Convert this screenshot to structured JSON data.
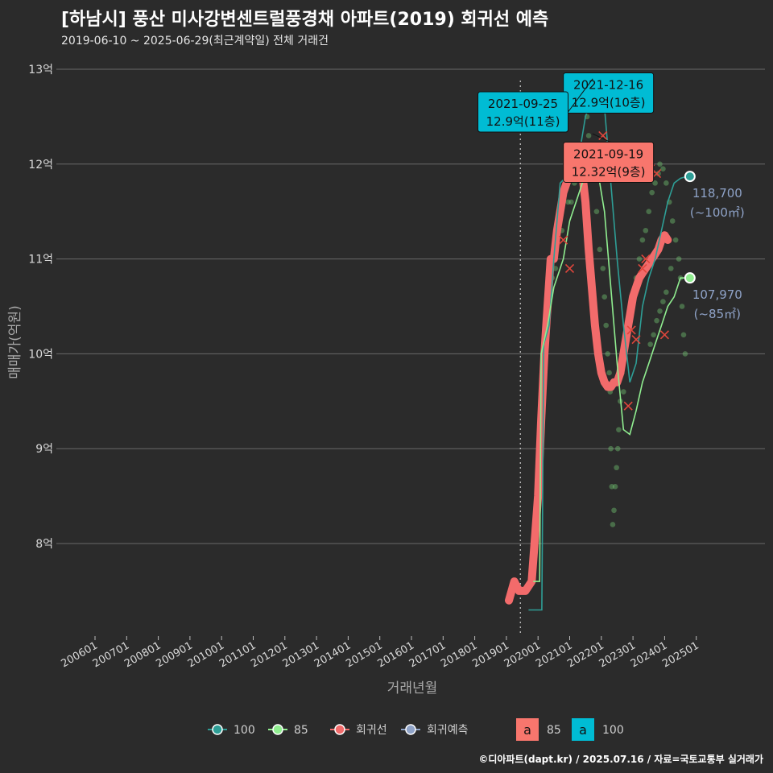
{
  "header": {
    "title": "[하남시] 풍산 미사강변센트럴풍경채 아파트(2019) 회귀선 예측",
    "subtitle": "2019-06-10 ~ 2025-06-29(최근계약일) 전체 거래건"
  },
  "footer": {
    "credit": "©디아파트(dapt.kr) / 2025.07.16 / 자료=국토교통부 실거래가"
  },
  "chart_data": {
    "type": "line",
    "xlabel": "거래년월",
    "ylabel": "매매가(억원)",
    "ylim": [
      7.0,
      13.1
    ],
    "y_ticks": [
      8,
      9,
      10,
      11,
      12,
      13
    ],
    "y_tick_labels": [
      "8억",
      "9억",
      "10억",
      "11억",
      "12억",
      "13억"
    ],
    "x_tick_labels": [
      "200601",
      "200701",
      "200801",
      "200901",
      "201001",
      "201101",
      "201201",
      "201301",
      "201401",
      "201501",
      "201601",
      "201701",
      "201801",
      "201901",
      "202001",
      "202101",
      "202201",
      "202301",
      "202401",
      "202501"
    ],
    "first_trade_marker": "2019-06-10",
    "grid": true,
    "colors": {
      "s100": "#2e9e96",
      "s85": "#90ee90",
      "regression": "#f26b6b",
      "forecast": "#8fa3c8",
      "label85_bg": "#f8766d",
      "label100_bg": "#00bcd4",
      "text_muted": "#8fa3c8"
    },
    "series": [
      {
        "name": "100",
        "points": [
          [
            2019.7,
            7.3
          ],
          [
            2020.12,
            7.3
          ],
          [
            2020.18,
            10.1
          ],
          [
            2020.35,
            10.3
          ],
          [
            2020.5,
            11.0
          ],
          [
            2020.7,
            11.8
          ],
          [
            2021.0,
            11.9
          ],
          [
            2021.3,
            12.1
          ],
          [
            2021.5,
            12.5
          ],
          [
            2021.7,
            12.7
          ],
          [
            2021.9,
            12.7
          ],
          [
            2022.1,
            12.6
          ],
          [
            2022.3,
            11.8
          ],
          [
            2022.5,
            11.0
          ],
          [
            2022.7,
            10.3
          ],
          [
            2022.9,
            9.7
          ],
          [
            2023.1,
            9.9
          ],
          [
            2023.3,
            10.5
          ],
          [
            2023.5,
            10.8
          ],
          [
            2023.7,
            11.0
          ],
          [
            2023.9,
            11.3
          ],
          [
            2024.1,
            11.6
          ],
          [
            2024.3,
            11.8
          ],
          [
            2024.5,
            11.85
          ],
          [
            2024.7,
            11.87
          ]
        ]
      },
      {
        "name": "85",
        "points": [
          [
            2019.85,
            7.6
          ],
          [
            2020.05,
            7.6
          ],
          [
            2020.1,
            10.0
          ],
          [
            2020.3,
            10.3
          ],
          [
            2020.5,
            10.7
          ],
          [
            2020.8,
            11.0
          ],
          [
            2021.0,
            11.4
          ],
          [
            2021.3,
            11.7
          ],
          [
            2021.5,
            11.9
          ],
          [
            2021.7,
            12.0
          ],
          [
            2021.9,
            11.9
          ],
          [
            2022.1,
            11.5
          ],
          [
            2022.3,
            10.7
          ],
          [
            2022.5,
            9.9
          ],
          [
            2022.7,
            9.2
          ],
          [
            2022.9,
            9.15
          ],
          [
            2023.1,
            9.4
          ],
          [
            2023.3,
            9.7
          ],
          [
            2023.5,
            9.9
          ],
          [
            2023.7,
            10.1
          ],
          [
            2023.9,
            10.3
          ],
          [
            2024.1,
            10.5
          ],
          [
            2024.3,
            10.6
          ],
          [
            2024.5,
            10.8
          ],
          [
            2024.7,
            10.8
          ]
        ]
      },
      {
        "name": "회귀선",
        "points": [
          [
            2019.08,
            7.4
          ],
          [
            2019.25,
            7.6
          ],
          [
            2019.4,
            7.5
          ],
          [
            2019.6,
            7.5
          ],
          [
            2019.8,
            7.6
          ],
          [
            2020.0,
            8.5
          ],
          [
            2020.1,
            9.3
          ],
          [
            2020.2,
            10.0
          ],
          [
            2020.3,
            10.5
          ],
          [
            2020.4,
            11.0
          ],
          [
            2020.5,
            11.0
          ],
          [
            2020.6,
            11.3
          ],
          [
            2020.7,
            11.5
          ],
          [
            2020.8,
            11.7
          ],
          [
            2020.9,
            11.8
          ],
          [
            2021.0,
            11.9
          ],
          [
            2021.1,
            12.0
          ],
          [
            2021.2,
            12.1
          ],
          [
            2021.3,
            12.05
          ],
          [
            2021.4,
            11.9
          ],
          [
            2021.5,
            11.6
          ],
          [
            2021.6,
            11.1
          ],
          [
            2021.7,
            10.7
          ],
          [
            2021.8,
            10.3
          ],
          [
            2021.9,
            10.0
          ],
          [
            2022.0,
            9.8
          ],
          [
            2022.1,
            9.7
          ],
          [
            2022.2,
            9.65
          ],
          [
            2022.3,
            9.65
          ],
          [
            2022.4,
            9.7
          ],
          [
            2022.5,
            9.7
          ],
          [
            2022.6,
            9.8
          ],
          [
            2022.7,
            10.0
          ],
          [
            2022.8,
            10.2
          ],
          [
            2022.9,
            10.4
          ],
          [
            2023.0,
            10.6
          ],
          [
            2023.1,
            10.7
          ],
          [
            2023.2,
            10.8
          ],
          [
            2023.3,
            10.85
          ],
          [
            2023.4,
            10.9
          ],
          [
            2023.5,
            10.95
          ],
          [
            2023.6,
            11.0
          ],
          [
            2023.7,
            11.05
          ],
          [
            2023.8,
            11.1
          ],
          [
            2023.9,
            11.2
          ],
          [
            2024.0,
            11.25
          ],
          [
            2024.1,
            11.2
          ]
        ]
      },
      {
        "name": "회귀예측",
        "points": []
      }
    ],
    "scatter": [
      [
        2020.25,
        10.35
      ],
      [
        2020.45,
        10.8
      ],
      [
        2020.55,
        10.9
      ],
      [
        2020.75,
        11.3
      ],
      [
        2020.95,
        11.6
      ],
      [
        2021.05,
        11.6
      ],
      [
        2021.15,
        11.8
      ],
      [
        2021.35,
        12.0
      ],
      [
        2021.45,
        12.2
      ],
      [
        2021.55,
        12.5
      ],
      [
        2021.6,
        12.3
      ],
      [
        2021.75,
        12.0
      ],
      [
        2021.85,
        11.5
      ],
      [
        2021.95,
        11.1
      ],
      [
        2022.05,
        10.9
      ],
      [
        2022.1,
        10.6
      ],
      [
        2022.15,
        10.3
      ],
      [
        2022.2,
        10.0
      ],
      [
        2022.25,
        9.8
      ],
      [
        2022.28,
        9.6
      ],
      [
        2022.3,
        9.0
      ],
      [
        2022.33,
        8.6
      ],
      [
        2022.36,
        8.2
      ],
      [
        2022.4,
        8.35
      ],
      [
        2022.44,
        8.6
      ],
      [
        2022.48,
        8.8
      ],
      [
        2022.52,
        9.0
      ],
      [
        2022.55,
        9.2
      ],
      [
        2022.6,
        9.5
      ],
      [
        2022.65,
        9.8
      ],
      [
        2022.7,
        9.6
      ],
      [
        2022.8,
        10.2
      ],
      [
        2022.9,
        10.4
      ],
      [
        2023.0,
        10.6
      ],
      [
        2023.1,
        10.8
      ],
      [
        2023.2,
        11.0
      ],
      [
        2023.3,
        11.2
      ],
      [
        2023.4,
        11.3
      ],
      [
        2023.5,
        11.5
      ],
      [
        2023.6,
        11.7
      ],
      [
        2023.7,
        11.8
      ],
      [
        2023.8,
        11.9
      ],
      [
        2023.85,
        12.0
      ],
      [
        2023.95,
        11.95
      ],
      [
        2024.05,
        11.8
      ],
      [
        2024.15,
        11.6
      ],
      [
        2024.25,
        11.4
      ],
      [
        2024.35,
        11.2
      ],
      [
        2024.45,
        11.0
      ],
      [
        2024.5,
        10.8
      ],
      [
        2024.55,
        10.5
      ],
      [
        2024.6,
        10.2
      ],
      [
        2024.65,
        10.0
      ],
      [
        2023.55,
        10.1
      ],
      [
        2023.65,
        10.2
      ],
      [
        2023.75,
        10.35
      ],
      [
        2023.85,
        10.45
      ],
      [
        2023.95,
        10.55
      ],
      [
        2024.05,
        10.65
      ],
      [
        2024.2,
        10.9
      ]
    ],
    "regression_marks": [
      [
        2021.0,
        10.9
      ],
      [
        2020.8,
        11.2
      ],
      [
        2021.95,
        12.9
      ],
      [
        2022.0,
        12.9
      ],
      [
        2022.05,
        12.3
      ],
      [
        2022.85,
        9.45
      ],
      [
        2022.95,
        10.25
      ],
      [
        2023.1,
        10.15
      ],
      [
        2023.3,
        10.9
      ],
      [
        2023.4,
        11.0
      ],
      [
        2023.5,
        11.9
      ],
      [
        2023.55,
        11.95
      ],
      [
        2023.75,
        11.9
      ],
      [
        2024.0,
        10.2
      ]
    ],
    "end_points": [
      {
        "series": "100",
        "x": 2024.8,
        "y": 11.87,
        "value": "118,700",
        "area": "(~100㎡)"
      },
      {
        "series": "85",
        "x": 2024.8,
        "y": 10.8,
        "value": "107,970",
        "area": "(~85㎡)"
      }
    ],
    "callouts": [
      {
        "series": "100",
        "date": "2021-12-16",
        "price": "12.9억(10층)",
        "x": 2021.96,
        "y": 12.9,
        "box_x": 2020.8,
        "box_y": 12.75
      },
      {
        "series": "100",
        "date": "2021-09-25",
        "price": "12.9억(11층)",
        "x": 2021.73,
        "y": 12.9,
        "box_x": 2018.1,
        "box_y": 12.55
      },
      {
        "series": "85",
        "date": "2021-09-19",
        "price": "12.32억(9층)",
        "x": 2021.72,
        "y": 12.32,
        "box_x": 2020.8,
        "box_y": 12.02
      }
    ],
    "legend": {
      "placement": "bottom",
      "line_items": [
        {
          "key": "100",
          "label": "100"
        },
        {
          "key": "85",
          "label": "85"
        },
        {
          "key": "regression",
          "label": "회귀선"
        },
        {
          "key": "forecast",
          "label": "회귀예측"
        }
      ],
      "label_items": [
        {
          "key": "85",
          "glyph": "a",
          "label": "85"
        },
        {
          "key": "100",
          "glyph": "a",
          "label": "100"
        }
      ]
    }
  }
}
